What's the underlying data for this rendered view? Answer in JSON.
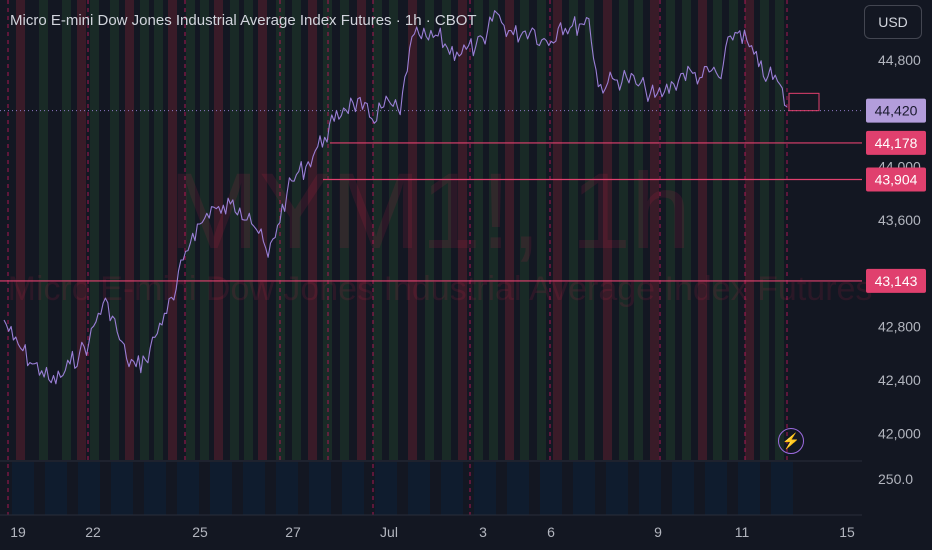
{
  "header": {
    "title": "Micro E-mini Dow Jones Industrial Average Index Futures · 1h · CBOT",
    "currency_label": "USD"
  },
  "watermark": {
    "symbol": "MYM1!, 1h",
    "name": "Micro E-mini Dow Jones Industrial Average Index Futures"
  },
  "icons": {
    "alert": "lightning-icon"
  },
  "colors": {
    "background": "#131722",
    "price_line": "#9a7fd6",
    "level": "#e0406e",
    "current_price_tag": "#b39ddb",
    "session_red": "#5a1f2e",
    "session_green": "#1f3a2a",
    "volume": "#0f1c2e"
  },
  "chart_data": {
    "type": "line",
    "title": "Micro E-mini Dow Jones Industrial Average Index Futures · 1h · CBOT",
    "xlabel": "",
    "ylabel": "",
    "x_ticks": [
      "19",
      "22",
      "25",
      "27",
      "Jul",
      "3",
      "6",
      "9",
      "11",
      "15"
    ],
    "y_ticks": [
      42000,
      42400,
      42800,
      43600,
      44000,
      44800
    ],
    "ylim": [
      41800,
      45250
    ],
    "grid": false,
    "series": [
      {
        "values": [
          42850,
          42700,
          42620,
          42520,
          42470,
          42380,
          42420,
          42520,
          42600,
          42680,
          42900,
          42980,
          42760,
          42560,
          42500,
          42550,
          42720,
          42900,
          43000,
          43300,
          43500,
          43580,
          43700,
          43650,
          43720,
          43690,
          43650,
          43500,
          43320,
          43560,
          43800,
          43940,
          44000,
          44120,
          44220,
          44340,
          44440,
          44480,
          44430,
          44360,
          44440,
          44470,
          44390,
          44890,
          44990,
          44950,
          44980,
          44890,
          44860,
          44880,
          44900,
          44920,
          45170,
          45060,
          44990,
          45010,
          45040,
          44950,
          44940,
          45080,
          45040,
          45070,
          45110,
          44600,
          44630,
          44650,
          44670,
          44620,
          44580,
          44520,
          44560,
          44620,
          44700,
          44700,
          44670,
          44720,
          44660,
          44980,
          45020,
          44900,
          44750,
          44680,
          44640,
          44450
        ]
      }
    ],
    "levels": [
      {
        "value": 44420,
        "label": "44,420",
        "style": "current"
      },
      {
        "value": 44178,
        "label": "44,178",
        "style": "level"
      },
      {
        "value": 43904,
        "label": "43,904",
        "style": "level"
      },
      {
        "value": 43143,
        "label": "43,143",
        "style": "level"
      }
    ],
    "volume_axis_label": "250.0"
  }
}
